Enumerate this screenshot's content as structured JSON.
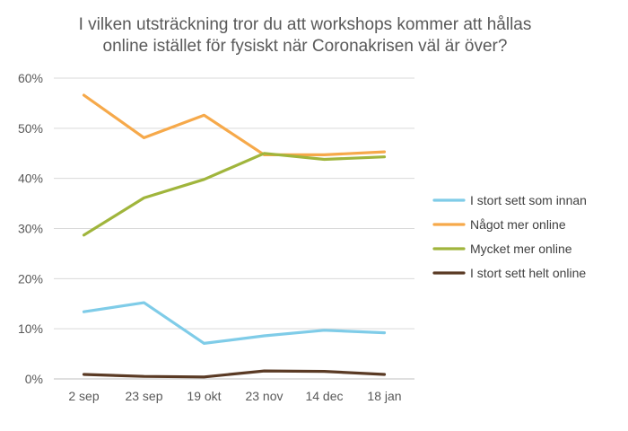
{
  "chart_data": {
    "type": "line",
    "title_line1": "I vilken utsträckning tror du att workshops kommer att hållas",
    "title_line2": "online istället för fysiskt när Coronakrisen väl är över?",
    "categories": [
      "2 sep",
      "23 sep",
      "19 okt",
      "23 nov",
      "14 dec",
      "18 jan"
    ],
    "y_ticks": [
      "0%",
      "10%",
      "20%",
      "30%",
      "40%",
      "50%",
      "60%"
    ],
    "ylim": [
      0,
      60
    ],
    "grid": true,
    "legend_position": "right",
    "series": [
      {
        "name": "I stort sett som innan",
        "color": "#7fcce8",
        "values": [
          13.4,
          15.2,
          7.1,
          8.6,
          9.7,
          9.2
        ]
      },
      {
        "name": "Något mer online",
        "color": "#f6a94a",
        "values": [
          56.6,
          48.1,
          52.6,
          44.7,
          44.7,
          45.3
        ]
      },
      {
        "name": "Mycket mer online",
        "color": "#a0b53c",
        "values": [
          28.7,
          36.1,
          39.8,
          45.0,
          43.8,
          44.3
        ]
      },
      {
        "name": "I stort sett helt online",
        "color": "#5a3a24",
        "values": [
          0.9,
          0.5,
          0.4,
          1.6,
          1.5,
          0.9
        ]
      }
    ]
  }
}
